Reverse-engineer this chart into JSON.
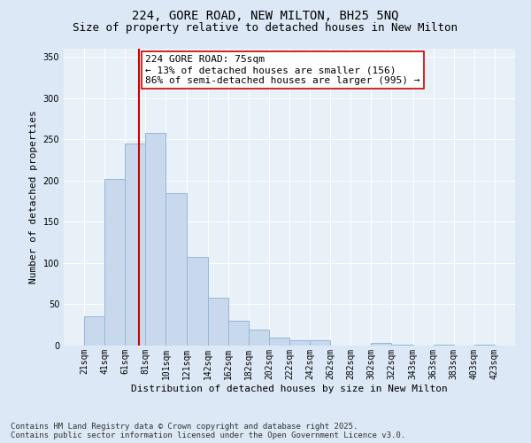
{
  "title_line1": "224, GORE ROAD, NEW MILTON, BH25 5NQ",
  "title_line2": "Size of property relative to detached houses in New Milton",
  "xlabel": "Distribution of detached houses by size in New Milton",
  "ylabel": "Number of detached properties",
  "bar_edges": [
    21,
    41,
    61,
    81,
    101,
    121,
    142,
    162,
    182,
    202,
    222,
    242,
    262,
    282,
    302,
    322,
    343,
    363,
    383,
    403,
    423
  ],
  "bar_values": [
    35,
    202,
    245,
    258,
    185,
    108,
    58,
    30,
    19,
    10,
    6,
    6,
    0,
    0,
    3,
    1,
    0,
    1,
    0,
    1
  ],
  "bar_color": "#c8d9ee",
  "bar_edge_color": "#93b8d8",
  "property_size": 75,
  "property_line_color": "#cc0000",
  "annotation_text": "224 GORE ROAD: 75sqm\n← 13% of detached houses are smaller (156)\n86% of semi-detached houses are larger (995) →",
  "annotation_box_facecolor": "#ffffff",
  "annotation_box_edgecolor": "#cc0000",
  "ylim": [
    0,
    360
  ],
  "yticks": [
    0,
    50,
    100,
    150,
    200,
    250,
    300,
    350
  ],
  "bg_color": "#dce8f5",
  "plot_bg_color": "#e8f0f8",
  "grid_color": "#ffffff",
  "footer_text": "Contains HM Land Registry data © Crown copyright and database right 2025.\nContains public sector information licensed under the Open Government Licence v3.0.",
  "title_fontsize": 10,
  "subtitle_fontsize": 9,
  "axis_label_fontsize": 8,
  "tick_fontsize": 7,
  "annotation_fontsize": 8,
  "footer_fontsize": 6.5
}
